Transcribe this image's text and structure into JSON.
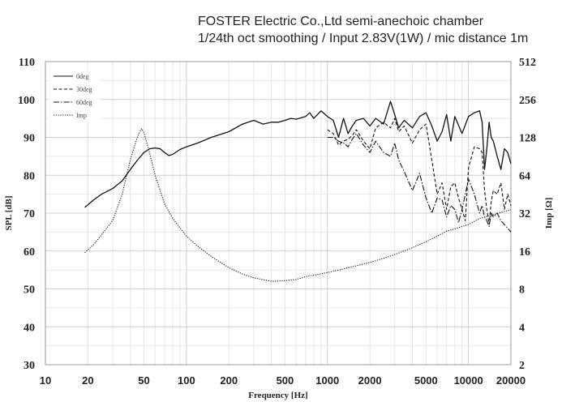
{
  "chart_data": {
    "type": "line",
    "title_lines": [
      "FOSTER Electric Co.,Ltd  semi-anechoic chamber",
      "1/24th oct smoothing / Input 2.83V(1W) / mic distance 1m"
    ],
    "xlabel": "Frequency [Hz]",
    "ylabel": "SPL [dB]",
    "y2label": "Imp [Ω]",
    "x_scale": "log",
    "xlim": [
      10,
      20000
    ],
    "ylim": [
      30,
      110
    ],
    "y2_scale": "log",
    "y2lim": [
      2,
      512
    ],
    "grid": true,
    "legend_position": "top-left",
    "x_ticks": [
      {
        "value": 10,
        "label": "10"
      },
      {
        "value": 20,
        "label": "20"
      },
      {
        "value": 50,
        "label": "50"
      },
      {
        "value": 100,
        "label": "100"
      },
      {
        "value": 200,
        "label": "200"
      },
      {
        "value": 500,
        "label": "500"
      },
      {
        "value": 1000,
        "label": "1000"
      },
      {
        "value": 2000,
        "label": "2000"
      },
      {
        "value": 5000,
        "label": "5000"
      },
      {
        "value": 10000,
        "label": "10000"
      },
      {
        "value": 20000,
        "label": "20000"
      }
    ],
    "y_ticks": [
      {
        "value": 110,
        "label": "110"
      },
      {
        "value": 100,
        "label": "100"
      },
      {
        "value": 90,
        "label": "90"
      },
      {
        "value": 80,
        "label": "80"
      },
      {
        "value": 70,
        "label": "70"
      },
      {
        "value": 60,
        "label": "60"
      },
      {
        "value": 50,
        "label": "50"
      },
      {
        "value": 40,
        "label": "40"
      },
      {
        "value": 30,
        "label": "30"
      }
    ],
    "y2_ticks": [
      {
        "value": 512,
        "label": "512"
      },
      {
        "value": 256,
        "label": "256"
      },
      {
        "value": 128,
        "label": "128"
      },
      {
        "value": 64,
        "label": "64"
      },
      {
        "value": 32,
        "label": "32"
      },
      {
        "value": 16,
        "label": "16"
      },
      {
        "value": 8,
        "label": "8"
      },
      {
        "value": 4,
        "label": "4"
      },
      {
        "value": 2,
        "label": "2"
      }
    ],
    "series": [
      {
        "name": "0deg",
        "axis": "left",
        "dash": "solid",
        "x": [
          19,
          22,
          25,
          30,
          35,
          40,
          45,
          50,
          55,
          60,
          65,
          70,
          75,
          80,
          90,
          100,
          120,
          150,
          200,
          250,
          300,
          350,
          400,
          450,
          500,
          550,
          600,
          700,
          750,
          800,
          850,
          900,
          1000,
          1100,
          1200,
          1300,
          1400,
          1500,
          1600,
          1800,
          2000,
          2200,
          2500,
          2800,
          3000,
          3200,
          3500,
          4000,
          4500,
          5000,
          5500,
          6000,
          6500,
          7000,
          7500,
          8000,
          9000,
          10000,
          11000,
          12000,
          12500,
          13000,
          13500,
          14000,
          14500,
          15000,
          16000,
          17000,
          18000,
          19000,
          20000
        ],
        "y": [
          71.5,
          73.5,
          75,
          76.5,
          78.5,
          81.5,
          84,
          86,
          87,
          87.2,
          87,
          86,
          85.2,
          85.5,
          86.8,
          87.5,
          88.5,
          90,
          91.5,
          93.5,
          94.5,
          93.5,
          94,
          94,
          94.5,
          95,
          94.8,
          95.5,
          96.5,
          95,
          96,
          97,
          95.5,
          94.5,
          90,
          95,
          91,
          93,
          94.5,
          95,
          93,
          95,
          93.5,
          99.5,
          96,
          92.5,
          94.5,
          92.5,
          95.5,
          96.5,
          93,
          89,
          91.5,
          96,
          89,
          95.5,
          91,
          95.5,
          96.5,
          97,
          94,
          81.5,
          87,
          94,
          90,
          89,
          85,
          81.5,
          87,
          86,
          83
        ]
      },
      {
        "name": "30deg",
        "axis": "left",
        "dash": "4,2.5",
        "x": [
          1000,
          1100,
          1200,
          1300,
          1400,
          1500,
          1600,
          1800,
          2000,
          2200,
          2500,
          2800,
          3000,
          3200,
          3500,
          4000,
          4500,
          5000,
          5500,
          6000,
          6500,
          7000,
          7500,
          8000,
          8500,
          9000,
          9500,
          10000,
          11000,
          12000,
          12500,
          13000,
          13500,
          14000,
          14500,
          15000,
          16000,
          17000,
          18000,
          19000,
          20000
        ],
        "y": [
          92,
          91,
          88,
          89,
          89.5,
          90.5,
          92,
          89,
          87,
          92.5,
          94,
          92.5,
          95,
          91.5,
          93,
          88.5,
          92,
          93.5,
          84,
          75,
          78,
          71,
          77,
          78,
          74,
          71,
          68,
          82,
          87.5,
          87,
          86,
          76,
          71,
          67,
          73,
          76,
          75,
          78,
          71,
          75,
          72
        ]
      },
      {
        "name": "60deg",
        "axis": "left",
        "dash": "7,2,1.5,2",
        "x": [
          1000,
          1100,
          1200,
          1300,
          1400,
          1500,
          1600,
          1800,
          2000,
          2200,
          2500,
          2800,
          3000,
          3200,
          3500,
          4000,
          4500,
          5000,
          5500,
          6000,
          6500,
          7000,
          7500,
          8000,
          8500,
          9000,
          9500,
          10000,
          11000,
          12000,
          12500,
          13000,
          13500,
          14000,
          14500,
          15000,
          16000,
          17000,
          18000,
          19000,
          20000
        ],
        "y": [
          90,
          90,
          89,
          88.5,
          87.5,
          89.5,
          91,
          88,
          86,
          89,
          86,
          85,
          88.5,
          84,
          81,
          76,
          80.5,
          74,
          70,
          74,
          73.5,
          69,
          72,
          71,
          67.5,
          71,
          75,
          79,
          75,
          70,
          72,
          69,
          68,
          66.5,
          70,
          69,
          70,
          68,
          67,
          66,
          65
        ]
      },
      {
        "name": "Imp",
        "axis": "right",
        "dash": "1.2,1.6",
        "x": [
          19,
          22,
          25,
          30,
          35,
          40,
          45,
          48,
          50,
          55,
          60,
          70,
          80,
          100,
          120,
          150,
          200,
          250,
          300,
          400,
          500,
          600,
          700,
          800,
          1000,
          1200,
          1500,
          2000,
          2500,
          3000,
          4000,
          5000,
          6000,
          7000,
          8000,
          10000,
          12000,
          15000,
          18000,
          20000
        ],
        "y": [
          15.5,
          18,
          21.5,
          28,
          45,
          85,
          130,
          150,
          140,
          95,
          64,
          38,
          29,
          21,
          17.5,
          14.5,
          11.8,
          10.5,
          9.8,
          9.2,
          9.3,
          9.5,
          10,
          10.3,
          10.8,
          11.3,
          12,
          13,
          14,
          15,
          17,
          19,
          21,
          23,
          24,
          26,
          29,
          31,
          33,
          34
        ]
      }
    ]
  }
}
